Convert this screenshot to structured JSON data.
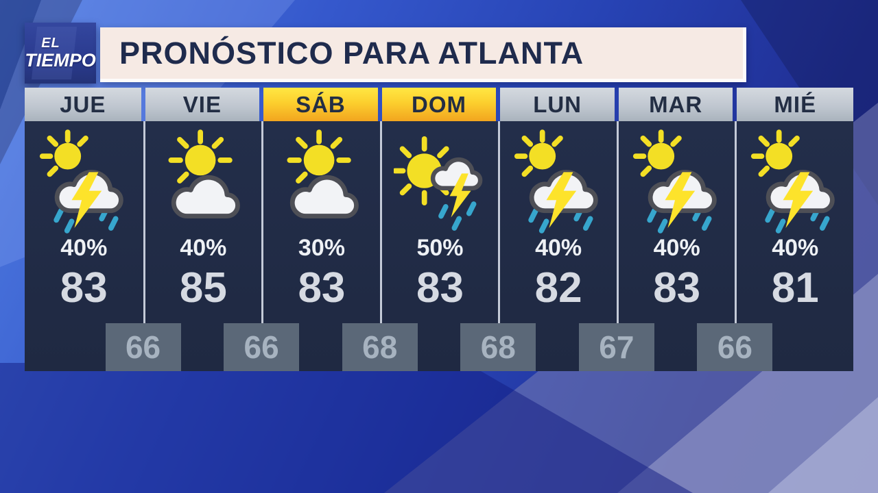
{
  "logo": {
    "line1": "EL",
    "line2": "TIEMPO"
  },
  "banner": {
    "title": "PRONÓSTICO PARA ATLANTA"
  },
  "colors": {
    "background_blue": "#2743b4",
    "column_navy": "#212c47",
    "banner_cream": "#f6eae4",
    "highlight_yellow": "#fccf2e",
    "header_gray": "#c0c7d0",
    "rain_teal": "#37a6cd",
    "bolt_yellow": "#fde32b"
  },
  "forecast": {
    "days": [
      {
        "label": "JUE",
        "header_style": "gray",
        "icon": "sun-cloud-storm-icon",
        "precip": "40%",
        "high": "83"
      },
      {
        "label": "VIE",
        "header_style": "gray",
        "icon": "sun-cloud-icon",
        "precip": "40%",
        "high": "85"
      },
      {
        "label": "SÁB",
        "header_style": "yellow",
        "icon": "sun-cloud-icon",
        "precip": "30%",
        "high": "83"
      },
      {
        "label": "DOM",
        "header_style": "yellow",
        "icon": "sun-storm-icon",
        "precip": "50%",
        "high": "83"
      },
      {
        "label": "LUN",
        "header_style": "gray",
        "icon": "sun-cloud-storm-icon",
        "precip": "40%",
        "high": "82"
      },
      {
        "label": "MAR",
        "header_style": "gray",
        "icon": "sun-cloud-storm-icon",
        "precip": "40%",
        "high": "83"
      },
      {
        "label": "MIÉ",
        "header_style": "gray",
        "icon": "sun-cloud-storm-icon",
        "precip": "40%",
        "high": "81"
      }
    ],
    "lows": [
      "66",
      "66",
      "68",
      "68",
      "67",
      "66"
    ]
  }
}
